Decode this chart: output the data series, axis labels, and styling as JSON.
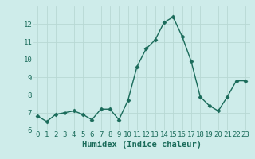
{
  "x": [
    0,
    1,
    2,
    3,
    4,
    5,
    6,
    7,
    8,
    9,
    10,
    11,
    12,
    13,
    14,
    15,
    16,
    17,
    18,
    19,
    20,
    21,
    22,
    23
  ],
  "y": [
    6.8,
    6.5,
    6.9,
    7.0,
    7.1,
    6.9,
    6.6,
    7.2,
    7.2,
    6.6,
    7.7,
    9.6,
    10.6,
    11.1,
    12.1,
    12.4,
    11.3,
    9.9,
    7.9,
    7.4,
    7.1,
    7.9,
    8.8,
    8.8
  ],
  "xlabel": "Humidex (Indice chaleur)",
  "ylim": [
    6,
    13
  ],
  "xlim": [
    -0.5,
    23.5
  ],
  "yticks": [
    6,
    7,
    8,
    9,
    10,
    11,
    12
  ],
  "xticks": [
    0,
    1,
    2,
    3,
    4,
    5,
    6,
    7,
    8,
    9,
    10,
    11,
    12,
    13,
    14,
    15,
    16,
    17,
    18,
    19,
    20,
    21,
    22,
    23
  ],
  "line_color": "#1a6b5a",
  "marker": "D",
  "marker_size": 2.5,
  "bg_color": "#ceecea",
  "grid_color": "#b8d8d4",
  "tick_color": "#1a6b5a",
  "label_color": "#1a6b5a",
  "xlabel_fontsize": 7.5,
  "tick_fontsize": 6.5
}
